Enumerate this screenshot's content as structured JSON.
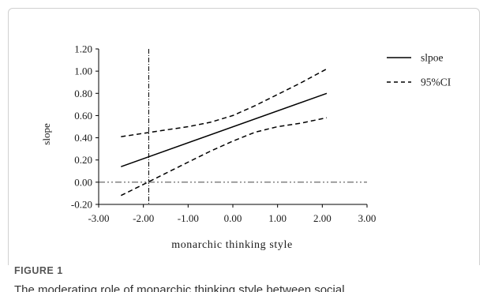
{
  "figure": {
    "label": "FIGURE 1",
    "caption": "The moderating role of monarchic thinking style between social"
  },
  "chart_data": {
    "type": "line",
    "xlabel": "monarchic thinking style",
    "ylabel": "slope",
    "xlim": [
      -3.0,
      3.0
    ],
    "ylim": [
      -0.2,
      1.2
    ],
    "x_ticks": [
      "-3.00",
      "-2.00",
      "-1.00",
      "0.00",
      "1.00",
      "2.00",
      "3.00"
    ],
    "y_ticks": [
      "-0.20",
      "0.00",
      "0.20",
      "0.40",
      "0.60",
      "0.80",
      "1.00",
      "1.20"
    ],
    "legend_position": "top-right",
    "grid": false,
    "series": [
      {
        "name": "slpoe",
        "style": "solid",
        "x": [
          -2.5,
          2.1
        ],
        "y": [
          0.14,
          0.8
        ]
      },
      {
        "name": "95%CI",
        "style": "dashed",
        "x": [
          -2.5,
          -2.0,
          -1.5,
          -1.0,
          -0.5,
          0.0,
          0.5,
          1.0,
          1.5,
          2.1
        ],
        "y": [
          0.41,
          0.44,
          0.47,
          0.5,
          0.54,
          0.6,
          0.69,
          0.79,
          0.89,
          1.02
        ]
      },
      {
        "name": "",
        "style": "dashed",
        "x": [
          -2.5,
          -2.0,
          -1.5,
          -1.0,
          -0.5,
          0.0,
          0.5,
          1.0,
          1.5,
          2.1
        ],
        "y": [
          -0.12,
          -0.02,
          0.08,
          0.18,
          0.28,
          0.37,
          0.45,
          0.5,
          0.53,
          0.58
        ]
      }
    ],
    "reference_lines": [
      {
        "orientation": "vertical",
        "value": -1.88,
        "style": "dash-dot"
      },
      {
        "orientation": "horizontal",
        "value": 0.0,
        "style": "dash-dot-dot"
      }
    ]
  },
  "colors": {
    "lines": "#000000",
    "reference": "#777777",
    "frame": "#d0d0d0"
  }
}
